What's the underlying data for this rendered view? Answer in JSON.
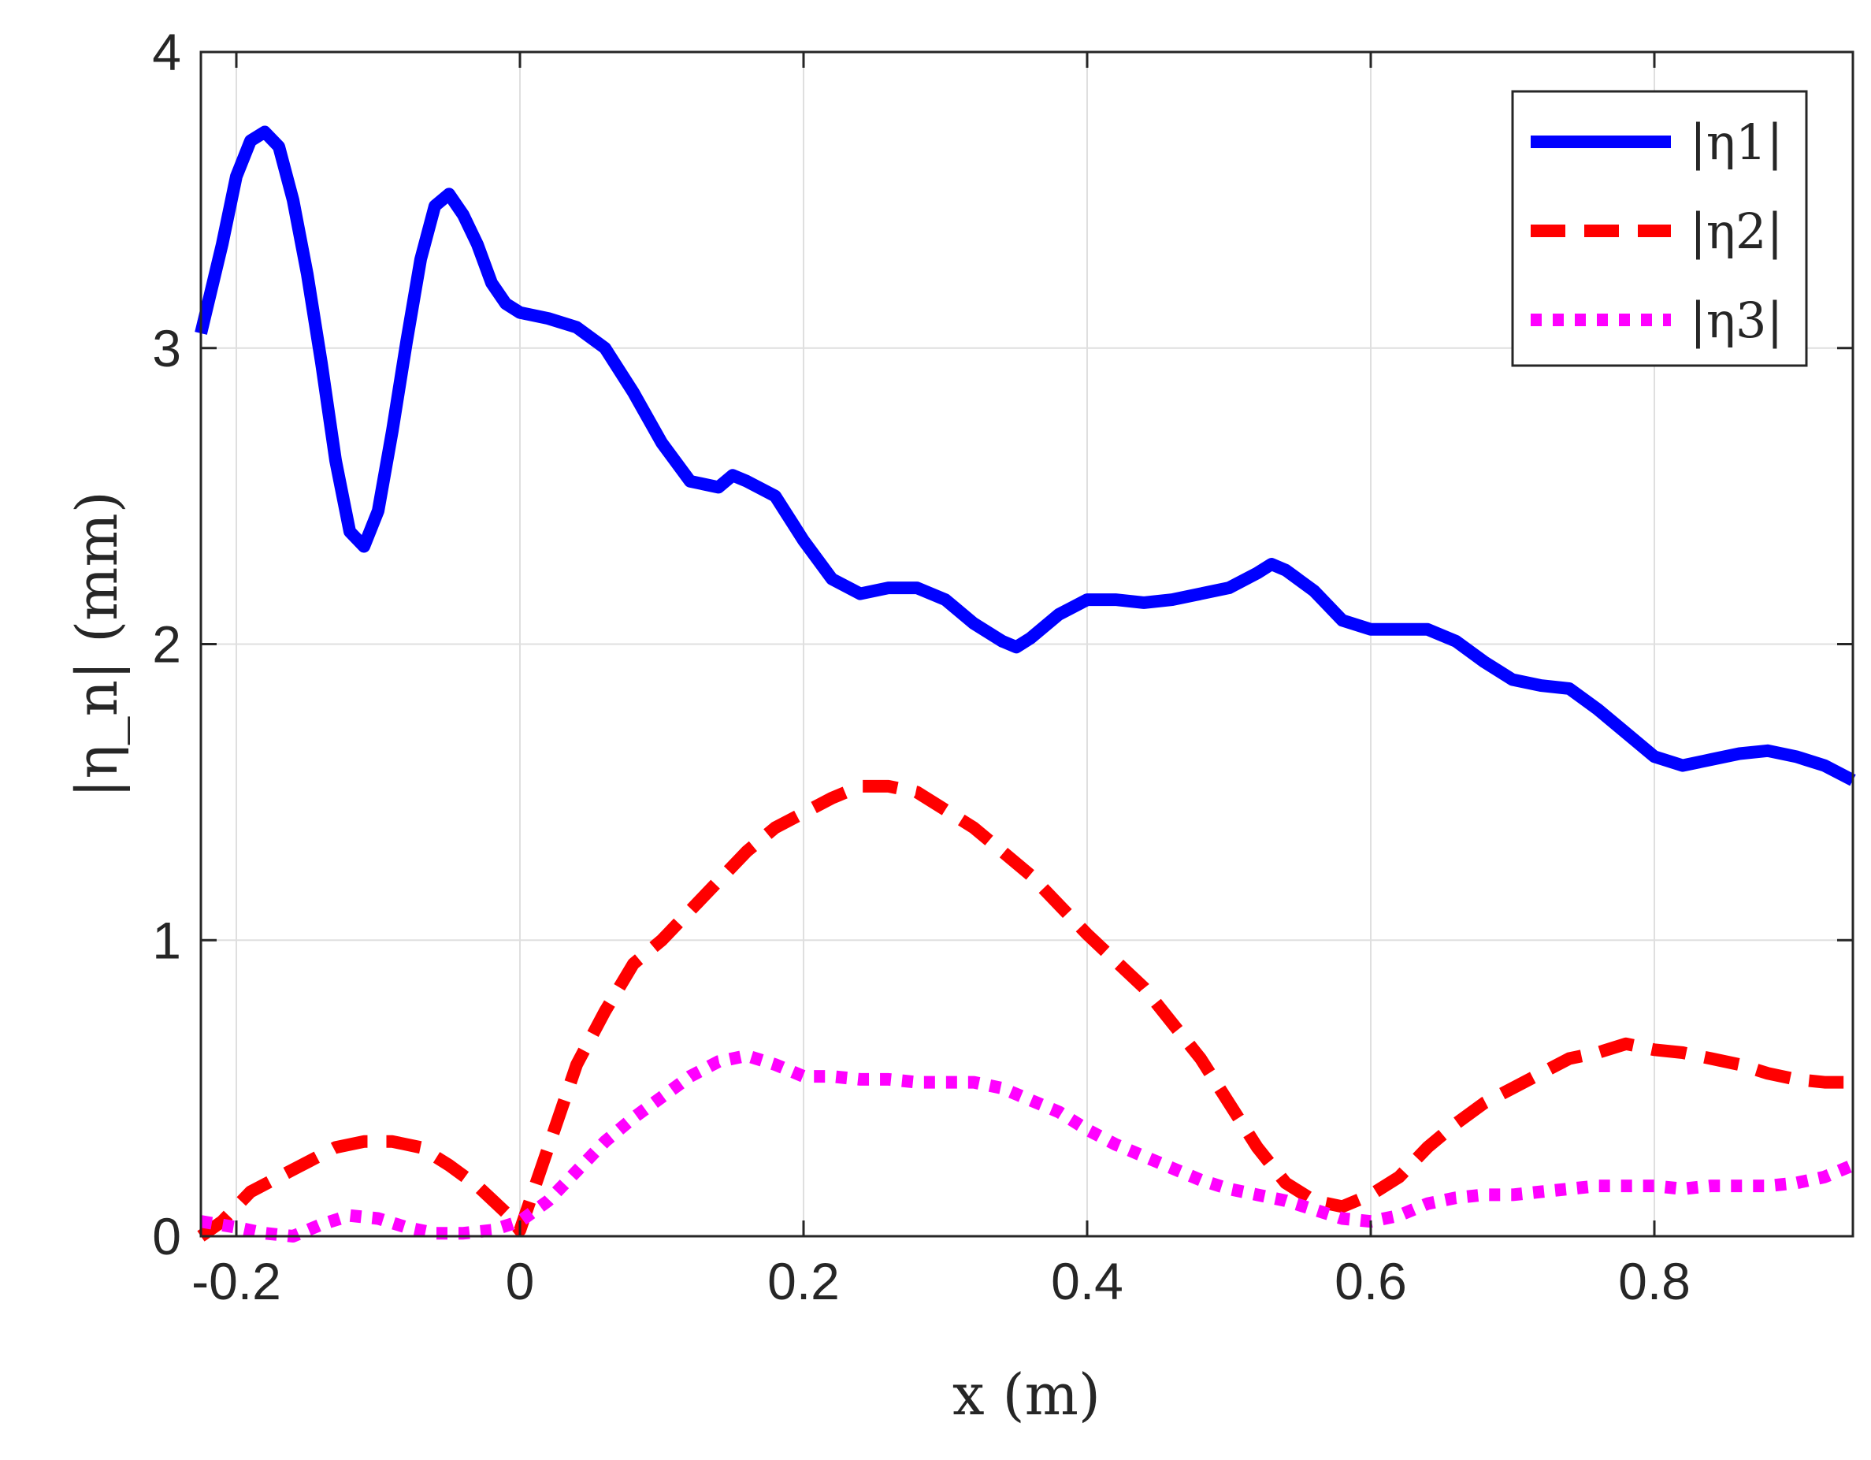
{
  "chart_data": {
    "type": "line",
    "xlabel": "x (m)",
    "ylabel": "|η_n| (mm)",
    "xlim": [
      -0.225,
      0.94
    ],
    "ylim": [
      0,
      4
    ],
    "xticks": [
      -0.2,
      0,
      0.2,
      0.4,
      0.6,
      0.8
    ],
    "xtick_labels": [
      "-0.2",
      "0",
      "0.2",
      "0.4",
      "0.6",
      "0.8"
    ],
    "yticks": [
      0,
      1,
      2,
      3,
      4
    ],
    "ytick_labels": [
      "0",
      "1",
      "2",
      "3",
      "4"
    ],
    "grid": true,
    "legend_position": "top-right",
    "series": [
      {
        "name": "|η1|",
        "color": "#0000ff",
        "style": "solid",
        "x": [
          -0.225,
          -0.21,
          -0.2,
          -0.19,
          -0.18,
          -0.17,
          -0.16,
          -0.15,
          -0.14,
          -0.13,
          -0.12,
          -0.11,
          -0.1,
          -0.09,
          -0.08,
          -0.07,
          -0.06,
          -0.05,
          -0.04,
          -0.03,
          -0.02,
          -0.01,
          0.0,
          0.02,
          0.04,
          0.06,
          0.08,
          0.1,
          0.12,
          0.14,
          0.15,
          0.16,
          0.18,
          0.2,
          0.22,
          0.24,
          0.26,
          0.28,
          0.3,
          0.32,
          0.34,
          0.35,
          0.36,
          0.38,
          0.4,
          0.42,
          0.44,
          0.46,
          0.48,
          0.5,
          0.52,
          0.53,
          0.54,
          0.56,
          0.58,
          0.6,
          0.62,
          0.64,
          0.66,
          0.68,
          0.7,
          0.72,
          0.74,
          0.76,
          0.78,
          0.8,
          0.82,
          0.84,
          0.86,
          0.88,
          0.9,
          0.92,
          0.94
        ],
        "y": [
          3.05,
          3.35,
          3.58,
          3.7,
          3.73,
          3.68,
          3.5,
          3.25,
          2.95,
          2.62,
          2.38,
          2.33,
          2.45,
          2.72,
          3.02,
          3.3,
          3.48,
          3.52,
          3.45,
          3.35,
          3.22,
          3.15,
          3.12,
          3.1,
          3.07,
          3.0,
          2.85,
          2.68,
          2.55,
          2.53,
          2.57,
          2.55,
          2.5,
          2.35,
          2.22,
          2.17,
          2.19,
          2.19,
          2.15,
          2.07,
          2.01,
          1.99,
          2.02,
          2.1,
          2.15,
          2.15,
          2.14,
          2.15,
          2.17,
          2.19,
          2.24,
          2.27,
          2.25,
          2.18,
          2.08,
          2.05,
          2.05,
          2.05,
          2.01,
          1.94,
          1.88,
          1.86,
          1.85,
          1.78,
          1.7,
          1.62,
          1.59,
          1.61,
          1.63,
          1.64,
          1.62,
          1.59,
          1.54
        ]
      },
      {
        "name": "|η2|",
        "color": "#ff0000",
        "style": "dashed",
        "x": [
          -0.225,
          -0.21,
          -0.19,
          -0.17,
          -0.15,
          -0.13,
          -0.11,
          -0.09,
          -0.07,
          -0.05,
          -0.03,
          -0.01,
          0.0,
          0.02,
          0.04,
          0.06,
          0.08,
          0.1,
          0.12,
          0.14,
          0.16,
          0.18,
          0.2,
          0.22,
          0.24,
          0.26,
          0.28,
          0.3,
          0.32,
          0.34,
          0.36,
          0.38,
          0.4,
          0.42,
          0.44,
          0.46,
          0.48,
          0.5,
          0.52,
          0.54,
          0.56,
          0.58,
          0.6,
          0.62,
          0.64,
          0.66,
          0.68,
          0.7,
          0.72,
          0.74,
          0.76,
          0.78,
          0.8,
          0.82,
          0.84,
          0.86,
          0.88,
          0.9,
          0.92,
          0.94
        ],
        "y": [
          0.0,
          0.05,
          0.15,
          0.2,
          0.25,
          0.3,
          0.32,
          0.32,
          0.3,
          0.24,
          0.17,
          0.08,
          0.02,
          0.3,
          0.58,
          0.76,
          0.92,
          1.0,
          1.1,
          1.2,
          1.3,
          1.38,
          1.43,
          1.48,
          1.52,
          1.52,
          1.5,
          1.44,
          1.38,
          1.3,
          1.22,
          1.12,
          1.02,
          0.93,
          0.84,
          0.72,
          0.6,
          0.45,
          0.3,
          0.18,
          0.12,
          0.1,
          0.14,
          0.2,
          0.3,
          0.38,
          0.45,
          0.5,
          0.55,
          0.6,
          0.62,
          0.65,
          0.63,
          0.62,
          0.6,
          0.58,
          0.55,
          0.53,
          0.52,
          0.52
        ]
      },
      {
        "name": "|η3|",
        "color": "#ff00ff",
        "style": "dotted",
        "x": [
          -0.225,
          -0.2,
          -0.18,
          -0.16,
          -0.14,
          -0.12,
          -0.1,
          -0.08,
          -0.06,
          -0.04,
          -0.02,
          0.0,
          0.02,
          0.04,
          0.06,
          0.08,
          0.1,
          0.12,
          0.14,
          0.16,
          0.18,
          0.2,
          0.22,
          0.24,
          0.26,
          0.28,
          0.3,
          0.32,
          0.34,
          0.36,
          0.38,
          0.4,
          0.42,
          0.44,
          0.46,
          0.48,
          0.5,
          0.52,
          0.54,
          0.56,
          0.58,
          0.6,
          0.62,
          0.64,
          0.66,
          0.68,
          0.7,
          0.72,
          0.74,
          0.76,
          0.78,
          0.8,
          0.82,
          0.84,
          0.86,
          0.88,
          0.9,
          0.92,
          0.94
        ],
        "y": [
          0.05,
          0.03,
          0.01,
          0.0,
          0.04,
          0.07,
          0.06,
          0.03,
          0.01,
          0.01,
          0.02,
          0.05,
          0.12,
          0.22,
          0.32,
          0.4,
          0.47,
          0.54,
          0.59,
          0.61,
          0.58,
          0.54,
          0.54,
          0.53,
          0.53,
          0.52,
          0.52,
          0.52,
          0.5,
          0.46,
          0.42,
          0.36,
          0.31,
          0.27,
          0.23,
          0.19,
          0.16,
          0.14,
          0.12,
          0.09,
          0.06,
          0.05,
          0.07,
          0.11,
          0.13,
          0.14,
          0.14,
          0.15,
          0.16,
          0.17,
          0.17,
          0.17,
          0.16,
          0.17,
          0.17,
          0.17,
          0.18,
          0.2,
          0.24
        ]
      }
    ]
  }
}
